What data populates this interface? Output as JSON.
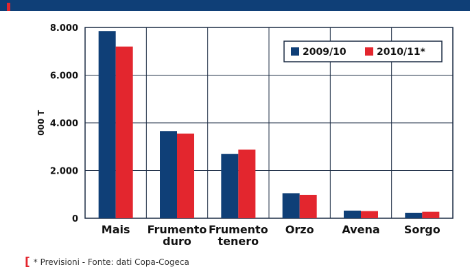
{
  "footnote": {
    "bracket": "[",
    "text": "* Previsioni - Fonte: dati Copa-Cogeca"
  },
  "colors": {
    "header": "#0f3f77",
    "accent": "#e3262e",
    "series_2009": "#0f3f77",
    "series_2010": "#e3262e",
    "grid": "#1c2c44"
  },
  "chart_data": {
    "type": "bar",
    "title": "",
    "xlabel": "",
    "ylabel": "000 T",
    "ylim": [
      0,
      8000
    ],
    "yticks": [
      {
        "value": 0,
        "label": "0"
      },
      {
        "value": 2000,
        "label": "2.000"
      },
      {
        "value": 4000,
        "label": "4.000"
      },
      {
        "value": 6000,
        "label": "6.000"
      },
      {
        "value": 8000,
        "label": "8.000"
      }
    ],
    "grid": true,
    "legend_position": "top-right",
    "categories": [
      {
        "lines": [
          "Mais"
        ]
      },
      {
        "lines": [
          "Frumento",
          "duro"
        ]
      },
      {
        "lines": [
          "Frumento",
          "tenero"
        ]
      },
      {
        "lines": [
          "Orzo"
        ]
      },
      {
        "lines": [
          "Avena"
        ]
      },
      {
        "lines": [
          "Sorgo"
        ]
      }
    ],
    "series": [
      {
        "name": "2009/10",
        "color": "#0f3f77",
        "values": [
          7850,
          3650,
          2700,
          1050,
          320,
          230
        ]
      },
      {
        "name": "2010/11*",
        "color": "#e3262e",
        "values": [
          7200,
          3550,
          2880,
          980,
          300,
          270
        ]
      }
    ]
  }
}
